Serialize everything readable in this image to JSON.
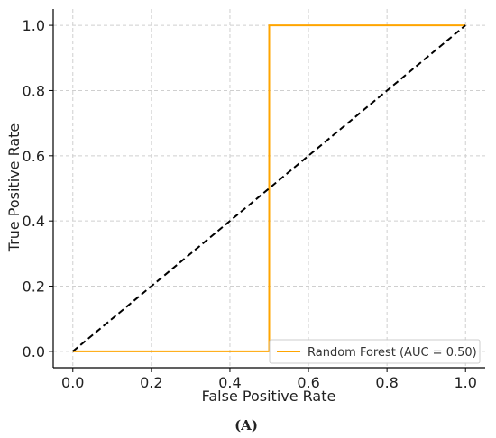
{
  "chart_data": {
    "type": "line",
    "title": "",
    "xlabel": "False Positive Rate",
    "ylabel": "True Positive Rate",
    "xlim": [
      -0.05,
      1.05
    ],
    "ylim": [
      -0.05,
      1.05
    ],
    "x_ticks": [
      0.0,
      0.2,
      0.4,
      0.6,
      0.8,
      1.0
    ],
    "y_ticks": [
      0.0,
      0.2,
      0.4,
      0.6,
      0.8,
      1.0
    ],
    "x_tick_labels": [
      "0.0",
      "0.2",
      "0.4",
      "0.6",
      "0.8",
      "1.0"
    ],
    "y_tick_labels": [
      "0.0",
      "0.2",
      "0.4",
      "0.6",
      "0.8",
      "1.0"
    ],
    "grid": true,
    "legend_position": "bottom-right",
    "series": [
      {
        "name": "Random Forest (AUC = 0.50)",
        "color": "#FFA500",
        "style": "solid",
        "x": [
          0.0,
          0.5,
          0.5,
          1.0
        ],
        "y": [
          0.0,
          0.0,
          1.0,
          1.0
        ]
      },
      {
        "color": "#000000",
        "style": "dashed",
        "x": [
          0.0,
          1.0
        ],
        "y": [
          0.0,
          1.0
        ]
      }
    ]
  },
  "caption": "(A)"
}
